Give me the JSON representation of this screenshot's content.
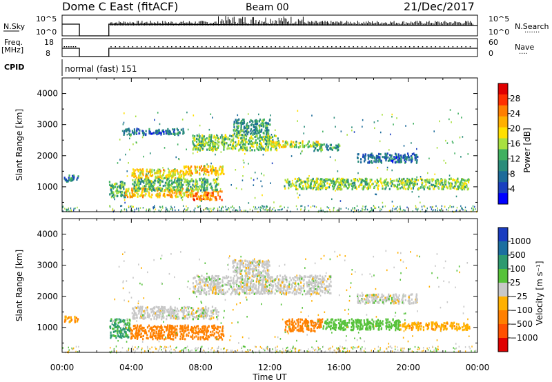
{
  "header": {
    "title": "Dome C East (fitACF)",
    "beam": "Beam 00",
    "date": "21/Dec/2017"
  },
  "strips": {
    "nsky_label": "N.Sky",
    "nsky_ticks": [
      "10^5",
      "10^0"
    ],
    "nsearch_label": "N.Search",
    "nsearch_ticks": [
      "10^5",
      "10^0"
    ],
    "freq_label": "Freq.",
    "freq_unit": "[MHz]",
    "freq_ticks": [
      "18",
      "8"
    ],
    "nave_label": "Nave",
    "nave_ticks": [
      "60",
      "0"
    ],
    "cpid_label": "CPID",
    "cpid_value": "normal (fast) 151"
  },
  "time_axis": {
    "label": "Time UT",
    "ticks": [
      "00:00",
      "04:00",
      "08:00",
      "12:00",
      "16:00",
      "20:00",
      "00:00"
    ]
  },
  "colorbars": {
    "power": {
      "label": "Power [dB]",
      "ticks": [
        "28",
        "24",
        "20",
        "16",
        "12",
        "8",
        "4"
      ],
      "colors": [
        "#e00000",
        "#ff3000",
        "#ff7f00",
        "#ffb000",
        "#ffe000",
        "#a8e040",
        "#40b060",
        "#2a8c7a",
        "#1c6b9a",
        "#1a40c0",
        "#0000ff"
      ]
    },
    "velocity": {
      "label": "Velocity [m s⁻¹]",
      "ticks": [
        "1000",
        "500",
        "100",
        "25",
        "−25",
        "−100",
        "−500",
        "−1000"
      ],
      "colors": [
        "#1a3cc0",
        "#1c6fa0",
        "#2e9a70",
        "#56c23a",
        "#c8c8c8",
        "#ffb000",
        "#ff8000",
        "#ff5000",
        "#e00000"
      ]
    }
  },
  "chart_data": [
    {
      "type": "heatmap",
      "panel": "power",
      "ylabel": "Slant Range [km]",
      "xlabel": "Time UT",
      "ylim": [
        200,
        4500
      ],
      "yticks": [
        1000,
        2000,
        3000,
        4000
      ],
      "xlim_hours": [
        0,
        24
      ],
      "echo_regions": [
        {
          "t0": 0.1,
          "t1": 0.9,
          "r0": 1200,
          "r1": 1400,
          "power_db": 8
        },
        {
          "t0": 2.7,
          "t1": 3.6,
          "r0": 700,
          "r1": 1200,
          "power_db": 12
        },
        {
          "t0": 3.6,
          "t1": 7.5,
          "r0": 700,
          "r1": 1000,
          "power_db": 20
        },
        {
          "t0": 7.5,
          "t1": 9.2,
          "r0": 600,
          "r1": 900,
          "power_db": 24
        },
        {
          "t0": 4.0,
          "t1": 7.0,
          "r0": 1300,
          "r1": 1600,
          "power_db": 18
        },
        {
          "t0": 7.0,
          "t1": 9.3,
          "r0": 1400,
          "r1": 1700,
          "power_db": 20
        },
        {
          "t0": 4.0,
          "t1": 9.0,
          "r0": 900,
          "r1": 1300,
          "power_db": 12
        },
        {
          "t0": 3.5,
          "t1": 7.0,
          "r0": 2700,
          "r1": 2900,
          "power_db": 6
        },
        {
          "t0": 7.5,
          "t1": 12.5,
          "r0": 2200,
          "r1": 2700,
          "power_db": 14
        },
        {
          "t0": 9.8,
          "t1": 12.0,
          "r0": 2700,
          "r1": 3200,
          "power_db": 10
        },
        {
          "t0": 12.0,
          "t1": 15.0,
          "r0": 2300,
          "r1": 2500,
          "power_db": 16
        },
        {
          "t0": 14.5,
          "t1": 16.0,
          "r0": 2200,
          "r1": 2400,
          "power_db": 10
        },
        {
          "t0": 12.8,
          "t1": 23.5,
          "r0": 950,
          "r1": 1300,
          "power_db": 14
        },
        {
          "t0": 17.0,
          "t1": 20.5,
          "r0": 1800,
          "r1": 2100,
          "power_db": 6
        }
      ]
    },
    {
      "type": "heatmap",
      "panel": "velocity",
      "ylabel": "Slant Range [km]",
      "xlabel": "Time UT",
      "ylim": [
        200,
        4500
      ],
      "yticks": [
        1000,
        2000,
        3000,
        4000
      ],
      "xlim_hours": [
        0,
        24
      ],
      "echo_regions": [
        {
          "t0": 0.1,
          "t1": 0.9,
          "r0": 1200,
          "r1": 1400,
          "velocity": -90
        },
        {
          "t0": 2.7,
          "t1": 3.9,
          "r0": 700,
          "r1": 1300,
          "velocity": 120
        },
        {
          "t0": 3.9,
          "t1": 9.3,
          "r0": 650,
          "r1": 1100,
          "velocity": -300
        },
        {
          "t0": 4.0,
          "t1": 9.0,
          "r0": 1300,
          "r1": 1700,
          "velocity": 0
        },
        {
          "t0": 7.5,
          "t1": 15.5,
          "r0": 2100,
          "r1": 2700,
          "velocity": 0
        },
        {
          "t0": 9.8,
          "t1": 12.0,
          "r0": 2700,
          "r1": 3200,
          "velocity": 0
        },
        {
          "t0": 12.8,
          "t1": 15.0,
          "r0": 900,
          "r1": 1300,
          "velocity": -300
        },
        {
          "t0": 15.0,
          "t1": 19.5,
          "r0": 950,
          "r1": 1300,
          "velocity": 60
        },
        {
          "t0": 19.5,
          "t1": 23.5,
          "r0": 950,
          "r1": 1200,
          "velocity": -80
        },
        {
          "t0": 17.0,
          "t1": 20.5,
          "r0": 1800,
          "r1": 2100,
          "velocity": 0
        }
      ]
    }
  ]
}
